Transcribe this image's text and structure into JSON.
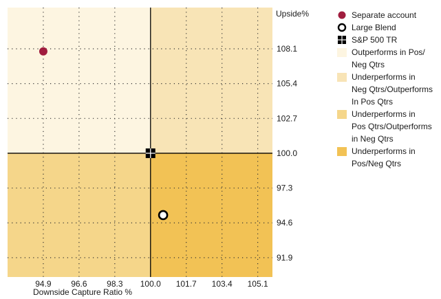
{
  "chart_data": {
    "type": "scatter",
    "xlabel": "Downside Capture Ratio %",
    "ylabel": "Upside%",
    "xlim": [
      93.2,
      105.8
    ],
    "ylim": [
      90.4,
      111.3
    ],
    "x_ticks": [
      "94.9",
      "96.6",
      "98.3",
      "100.0",
      "101.7",
      "103.4",
      "105.1"
    ],
    "y_ticks": [
      "108.1",
      "105.4",
      "102.7",
      "100.0",
      "97.3",
      "94.6",
      "91.9"
    ],
    "crosshair": {
      "x": 100.0,
      "y": 100.0
    },
    "quadrants": [
      {
        "label": "Outperforms in Pos/ Neg Qtrs",
        "color": "#fdf5e1"
      },
      {
        "label": "Underperforms in Neg Qtrs/Outperforms In Pos Qtrs",
        "color": "#f8e4b6"
      },
      {
        "label": "Underperforms in Pos Qtrs/Outperforms in Neg Qtrs",
        "color": "#f5d68a"
      },
      {
        "label": "Underperforms in Pos/Neg Qtrs",
        "color": "#f2c255"
      }
    ],
    "series": [
      {
        "name": "Separate account",
        "marker": "filled-circle",
        "color": "#a01d3e",
        "points": [
          {
            "x": 94.9,
            "y": 107.9
          }
        ]
      },
      {
        "name": "Large Blend",
        "marker": "open-circle",
        "color": "#000000",
        "points": [
          {
            "x": 100.6,
            "y": 95.2
          }
        ]
      },
      {
        "name": "S&P 500 TR",
        "marker": "square-grid",
        "color": "#000000",
        "points": [
          {
            "x": 100.0,
            "y": 100.0
          }
        ]
      }
    ]
  },
  "legend": [
    {
      "label": "Separate account",
      "symbol": "filled-circle",
      "color": "#a01d3e"
    },
    {
      "label": "Large Blend",
      "symbol": "open-circle",
      "color": "#000000"
    },
    {
      "label": "S&P 500 TR",
      "symbol": "square-grid",
      "color": "#000000"
    },
    {
      "label": "Outperforms in Pos/\nNeg Qtrs",
      "symbol": "swatch",
      "color": "#fdf5e1"
    },
    {
      "label": "Underperforms in\nNeg Qtrs/Outperforms\nIn Pos Qtrs",
      "symbol": "swatch",
      "color": "#f8e4b6"
    },
    {
      "label": "Underperforms in\nPos Qtrs/Outperforms\nin Neg Qtrs",
      "symbol": "swatch",
      "color": "#f5d68a"
    },
    {
      "label": "Underperforms in\nPos/Neg Qtrs",
      "symbol": "swatch",
      "color": "#f2c255"
    }
  ]
}
